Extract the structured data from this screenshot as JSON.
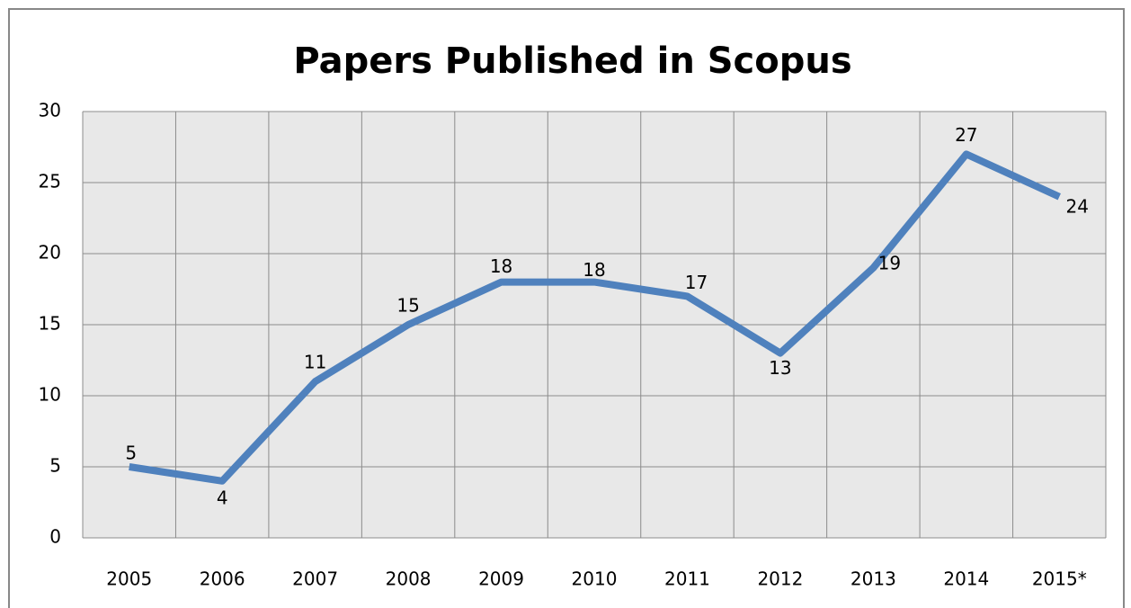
{
  "chart_data": {
    "type": "line",
    "title": "Papers Published in Scopus",
    "categories": [
      "2005",
      "2006",
      "2007",
      "2008",
      "2009",
      "2010",
      "2011",
      "2012",
      "2013",
      "2014",
      "2015*"
    ],
    "values": [
      5,
      4,
      11,
      15,
      18,
      18,
      17,
      13,
      19,
      27,
      24
    ],
    "color": "#4f81bd",
    "ylim": [
      0,
      30
    ],
    "yticks": [
      0,
      5,
      10,
      15,
      20,
      25,
      30
    ],
    "grid": true
  }
}
